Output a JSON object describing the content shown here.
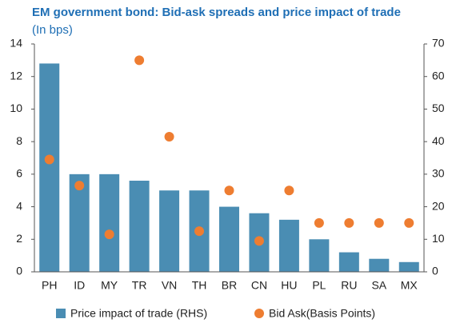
{
  "chart_data": {
    "type": "bar+scatter",
    "title": "EM government bond: Bid-ask spreads and price impact of trade",
    "subtitle": "(In bps)",
    "categories": [
      "PH",
      "ID",
      "MY",
      "TR",
      "VN",
      "TH",
      "BR",
      "CN",
      "HU",
      "PL",
      "RU",
      "SA",
      "MX"
    ],
    "series": [
      {
        "name": "Price impact of trade (RHS)",
        "type": "bar",
        "axis": "y2",
        "color": "#4a8db3",
        "values": [
          64,
          30,
          30,
          28,
          25,
          25,
          20,
          18,
          16,
          10,
          6,
          4,
          3
        ]
      },
      {
        "name": "Bid Ask(Basis Points)",
        "type": "scatter",
        "axis": "y",
        "color": "#ee7d31",
        "values": [
          6.9,
          5.3,
          2.3,
          13,
          8.3,
          2.5,
          5.0,
          1.9,
          5.0,
          3.0,
          3.0,
          3.0,
          3.0
        ]
      }
    ],
    "ylim": [
      0,
      14
    ],
    "yticks": [
      0,
      2,
      4,
      6,
      8,
      10,
      12,
      14
    ],
    "y2lim": [
      0,
      70
    ],
    "y2ticks": [
      0,
      10,
      20,
      30,
      40,
      50,
      60,
      70
    ],
    "legend": "bottom"
  }
}
